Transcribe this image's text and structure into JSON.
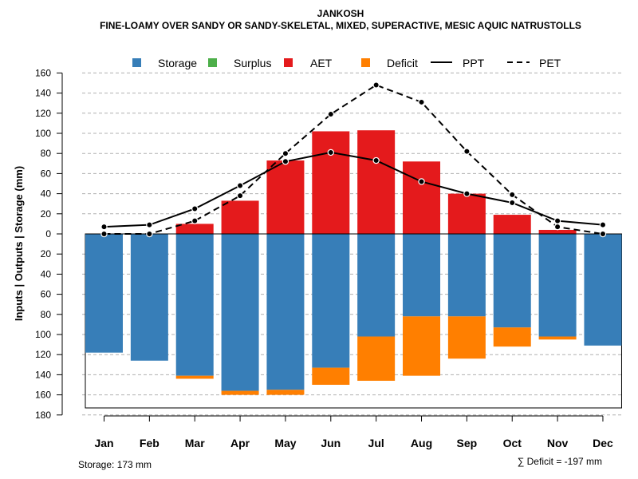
{
  "chart_data": {
    "type": "bar",
    "title": "JANKOSH",
    "subtitle": "FINE-LOAMY OVER SANDY OR SANDY-SKELETAL, MIXED, SUPERACTIVE, MESIC AQUIC NATRUSTOLLS",
    "ylabel": "Inputs | Outputs | Storage    (mm)",
    "ylim": [
      -180,
      160
    ],
    "yticks": [
      160,
      140,
      120,
      100,
      80,
      60,
      40,
      20,
      0,
      -20,
      -40,
      -60,
      -80,
      -100,
      -120,
      -140,
      -160,
      -180
    ],
    "ytick_labels": [
      "160",
      "140",
      "120",
      "100",
      "80",
      "60",
      "40",
      "20",
      "0",
      "20",
      "40",
      "60",
      "80",
      "100",
      "120",
      "140",
      "160",
      "180"
    ],
    "categories": [
      "Jan",
      "Feb",
      "Mar",
      "Apr",
      "May",
      "Jun",
      "Jul",
      "Aug",
      "Sep",
      "Oct",
      "Nov",
      "Dec"
    ],
    "series": [
      {
        "name": "Storage",
        "color": "#377EB8",
        "values": [
          -118,
          -126,
          -141,
          -156,
          -155,
          -133,
          -102,
          -82,
          -82,
          -93,
          -102,
          -111
        ]
      },
      {
        "name": "Surplus",
        "color": "#4DAF4A",
        "values": [
          0,
          0,
          0,
          0,
          0,
          0,
          0,
          0,
          0,
          0,
          0,
          0
        ]
      },
      {
        "name": "AET",
        "color": "#E41A1C",
        "values": [
          0,
          0,
          10,
          33,
          73,
          102,
          103,
          72,
          40,
          19,
          4,
          0
        ]
      },
      {
        "name": "Deficit",
        "color": "#FF7F00",
        "values": [
          0,
          0,
          -3,
          -4,
          -5,
          -17,
          -44,
          -59,
          -42,
          -19,
          -3,
          0
        ]
      },
      {
        "name": "PPT",
        "color": "#000000",
        "style": "solid",
        "values": [
          7,
          9,
          25,
          48,
          72,
          81,
          73,
          52,
          40,
          31,
          13,
          9
        ]
      },
      {
        "name": "PET",
        "color": "#000000",
        "style": "dashed",
        "values": [
          0,
          0,
          13,
          38,
          80,
          119,
          148,
          131,
          82,
          39,
          7,
          0
        ]
      }
    ],
    "storage_box_depth": -173,
    "grid": true,
    "legend_placement": "top"
  },
  "footer": {
    "storage": "Storage: 173 mm",
    "deficit": "∑ Deficit = -197 mm"
  }
}
